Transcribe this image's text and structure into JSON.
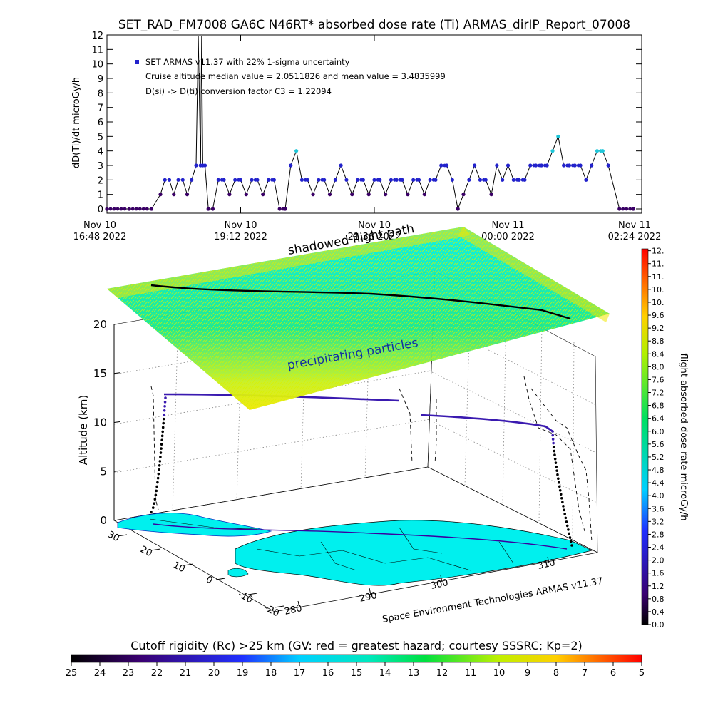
{
  "title": "SET_RAD_FM7008  GA6C N46RT* absorbed dose rate (Ti) ARMAS_dirIP_Report_07008",
  "chart_data": [
    {
      "type": "line",
      "title": "SET_RAD_FM7008  GA6C N46RT* absorbed dose rate (Ti) ARMAS_dirIP_Report_07008",
      "ylabel": "dD(Ti)/dt microGy/h",
      "ylim": [
        0,
        12
      ],
      "yticks": [
        "0",
        "1",
        "2",
        "3",
        "4",
        "5",
        "6",
        "7",
        "8",
        "9",
        "10",
        "11",
        "12"
      ],
      "xticks": [
        {
          "line1": "Nov 10",
          "line2": "16:48 2022"
        },
        {
          "line1": "Nov 10",
          "line2": "19:12 2022"
        },
        {
          "line1": "Nov 10",
          "line2": "21:36 2022"
        },
        {
          "line1": "Nov 11",
          "line2": "00:00 2022"
        },
        {
          "line1": "Nov 11",
          "line2": "02:24 2022"
        }
      ],
      "xlim_hours": [
        0,
        9.6
      ],
      "legend": [
        "SET ARMAS v11.37 with 22% 1-sigma uncertainty",
        "Cruise altitude median value = 2.0511826 and mean value = 3.4835999",
        "D(si) -> D(ti) conversion factor C3 = 1.22094"
      ],
      "series": [
        {
          "name": "SET ARMAS v11.37 with 22% 1-sigma uncertainty",
          "x_hours": [
            0.0,
            0.4,
            0.8,
            0.96,
            1.04,
            1.12,
            1.2,
            1.28,
            1.36,
            1.44,
            1.52,
            1.6,
            1.64,
            1.68,
            1.7,
            1.72,
            1.76,
            1.82,
            1.9,
            2.0,
            2.1,
            2.2,
            2.3,
            2.4,
            2.5,
            2.6,
            2.7,
            2.8,
            2.9,
            3.0,
            3.1,
            3.2,
            3.3,
            3.4,
            3.5,
            3.6,
            3.7,
            3.8,
            3.9,
            4.0,
            4.1,
            4.2,
            4.3,
            4.4,
            4.5,
            4.6,
            4.7,
            4.8,
            4.9,
            5.0,
            5.1,
            5.2,
            5.3,
            5.4,
            5.5,
            5.6,
            5.7,
            5.8,
            5.9,
            6.0,
            6.1,
            6.2,
            6.3,
            6.4,
            6.5,
            6.6,
            6.7,
            6.8,
            6.9,
            7.0,
            7.1,
            7.2,
            7.3,
            7.4,
            7.5,
            7.6,
            7.7,
            7.8,
            7.9,
            8.0,
            8.1,
            8.2,
            8.3,
            8.4,
            8.5,
            8.6,
            8.7,
            8.8,
            8.9,
            9.0,
            9.2,
            9.45
          ],
          "values": [
            0,
            0,
            0,
            1,
            2,
            2,
            1,
            2,
            2,
            1,
            2,
            3,
            12,
            3,
            12,
            3,
            3,
            0,
            0,
            2,
            2,
            1,
            2,
            2,
            1,
            2,
            2,
            1,
            2,
            2,
            0,
            0,
            3,
            4,
            2,
            2,
            1,
            2,
            2,
            1,
            2,
            3,
            2,
            1,
            2,
            2,
            1,
            2,
            2,
            1,
            2,
            2,
            2,
            1,
            2,
            2,
            1,
            2,
            2,
            3,
            3,
            2,
            0,
            1,
            2,
            3,
            2,
            2,
            1,
            3,
            2,
            3,
            2,
            2,
            2,
            3,
            3,
            3,
            3,
            4,
            5,
            3,
            3,
            3,
            3,
            2,
            3,
            4,
            4,
            3,
            0,
            0
          ]
        }
      ]
    },
    {
      "type": "scatter",
      "subtype": "3d-flight-track",
      "zlabel": "Altitude (km)",
      "zlim": [
        0,
        20
      ],
      "zticks": [
        "0",
        "5",
        "10",
        "15",
        "20"
      ],
      "lat_ticks": [
        "-20",
        "-10",
        "0",
        "10",
        "20",
        "30"
      ],
      "lon_ticks": [
        "280",
        "290",
        "300",
        "310"
      ],
      "annotations": [
        "shadowed flight path",
        "precipitating particles"
      ],
      "footer": "Space Environment Technologies ARMAS v11.37",
      "cruise_altitude_km": 12.5,
      "colorbar": {
        "label": "flight absorbed dose rate microGy/h",
        "ticks": [
          "0.0",
          "0.4",
          "0.8",
          "1.2",
          "1.6",
          "2.0",
          "2.4",
          "2.8",
          "3.2",
          "3.6",
          "4.0",
          "4.4",
          "4.8",
          "5.2",
          "5.6",
          "6.0",
          "6.4",
          "6.8",
          "7.2",
          "7.6",
          "8.0",
          "8.4",
          "8.8",
          "9.2",
          "9.6",
          "10.",
          "10.",
          "11.",
          "11.",
          "12."
        ]
      }
    },
    {
      "type": "heatmap",
      "subtype": "colorbar",
      "label": "Cutoff rigidity (Rc) >25 km (GV: red = greatest hazard; courtesy SSSRC; Kp=2)",
      "ticks": [
        "25",
        "24",
        "23",
        "22",
        "21",
        "20",
        "19",
        "18",
        "17",
        "16",
        "15",
        "14",
        "13",
        "12",
        "11",
        "10",
        "9",
        "8",
        "7",
        "6",
        "5"
      ]
    }
  ],
  "colors": {
    "data_point": "#2222cc",
    "data_point_high": "#1fc6d8",
    "data_point_low": "#3a0066",
    "ocean_land": "#00f0ee"
  }
}
